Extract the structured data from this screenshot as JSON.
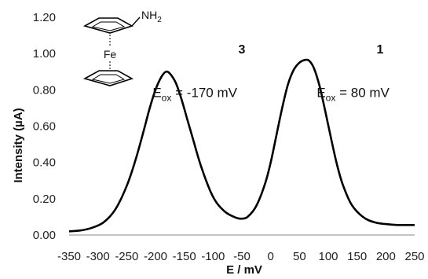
{
  "chart_data": {
    "type": "line",
    "title": "",
    "xlabel": "E / mV",
    "ylabel": "Intensity (µA)",
    "xlim": [
      -350,
      250
    ],
    "ylim": [
      0,
      1.2
    ],
    "x_ticks": [
      -350,
      -300,
      -250,
      -200,
      -150,
      -100,
      -50,
      0,
      50,
      100,
      150,
      200,
      250
    ],
    "y_ticks": [
      "0.00",
      "0.20",
      "0.40",
      "0.60",
      "0.80",
      "1.00",
      "1.20"
    ],
    "grid": false,
    "legend": "none",
    "series": [
      {
        "color": "#000000",
        "x": [
          -350,
          -330,
          -310,
          -290,
          -270,
          -250,
          -235,
          -220,
          -210,
          -200,
          -190,
          -182,
          -175,
          -165,
          -155,
          -145,
          -135,
          -120,
          -100,
          -80,
          -60,
          -50,
          -40,
          -25,
          -10,
          0,
          10,
          20,
          30,
          40,
          50,
          60,
          67,
          75,
          85,
          95,
          105,
          115,
          125,
          140,
          160,
          180,
          200,
          220,
          240,
          250
        ],
        "y": [
          0.02,
          0.025,
          0.04,
          0.07,
          0.14,
          0.27,
          0.41,
          0.58,
          0.7,
          0.8,
          0.87,
          0.9,
          0.89,
          0.84,
          0.75,
          0.64,
          0.53,
          0.37,
          0.21,
          0.13,
          0.095,
          0.09,
          0.1,
          0.16,
          0.28,
          0.4,
          0.55,
          0.7,
          0.83,
          0.91,
          0.95,
          0.965,
          0.96,
          0.92,
          0.82,
          0.68,
          0.53,
          0.39,
          0.28,
          0.17,
          0.1,
          0.07,
          0.06,
          0.055,
          0.055,
          0.055
        ]
      }
    ],
    "annotations": [
      {
        "id": "label3",
        "text": "3",
        "x": -50,
        "y": 1.0
      },
      {
        "id": "label1",
        "text": "1",
        "x": 190,
        "y": 1.0
      },
      {
        "id": "eox3",
        "main": "E",
        "sub": "ox",
        "rest": " = -170 mV",
        "x": -205,
        "y": 0.76
      },
      {
        "id": "eox1",
        "main": "E",
        "sub": "ox",
        "rest": " = 80 mV",
        "x": 80,
        "y": 0.76
      }
    ],
    "molecule": {
      "substituent": "NH",
      "subscript": "2",
      "metal": "Fe"
    }
  }
}
